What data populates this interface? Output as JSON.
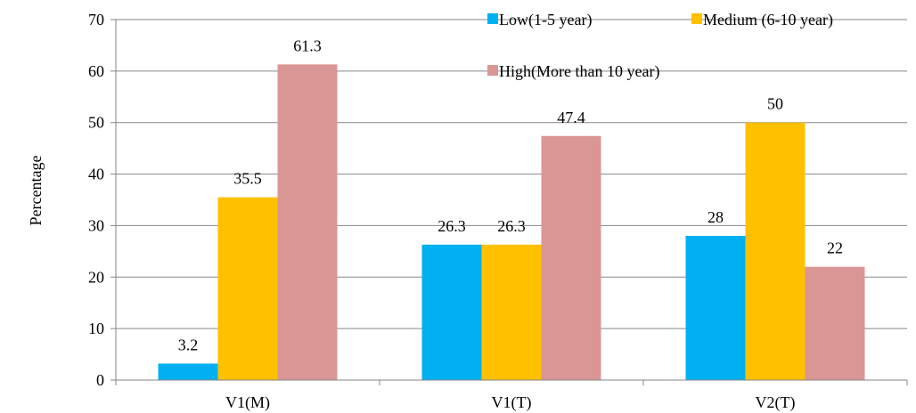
{
  "chart_data": {
    "type": "bar",
    "categories": [
      "V1(M)",
      "V1(T)",
      "V2(T)"
    ],
    "series": [
      {
        "name": "Low(1-5 year)",
        "color": "#00B0F0",
        "values": [
          3.2,
          26.3,
          28
        ]
      },
      {
        "name": "Medium (6-10 year)",
        "color": "#FFC000",
        "values": [
          35.5,
          26.3,
          50
        ]
      },
      {
        "name": "High(More than 10 year)",
        "color": "#DA9694",
        "values": [
          61.3,
          47.4,
          22
        ]
      }
    ],
    "data_labels": [
      [
        "3.2",
        "26.3",
        "28"
      ],
      [
        "35.5",
        "26.3",
        "50"
      ],
      [
        "61.3",
        "47.4",
        "22"
      ]
    ],
    "yticks": [
      "0",
      "10",
      "20",
      "30",
      "40",
      "50",
      "60",
      "70"
    ],
    "ylim": [
      0,
      70
    ],
    "ylabel": "Percentage",
    "xlabel": "",
    "title": "",
    "grid": true,
    "legend_position": "top-right"
  }
}
